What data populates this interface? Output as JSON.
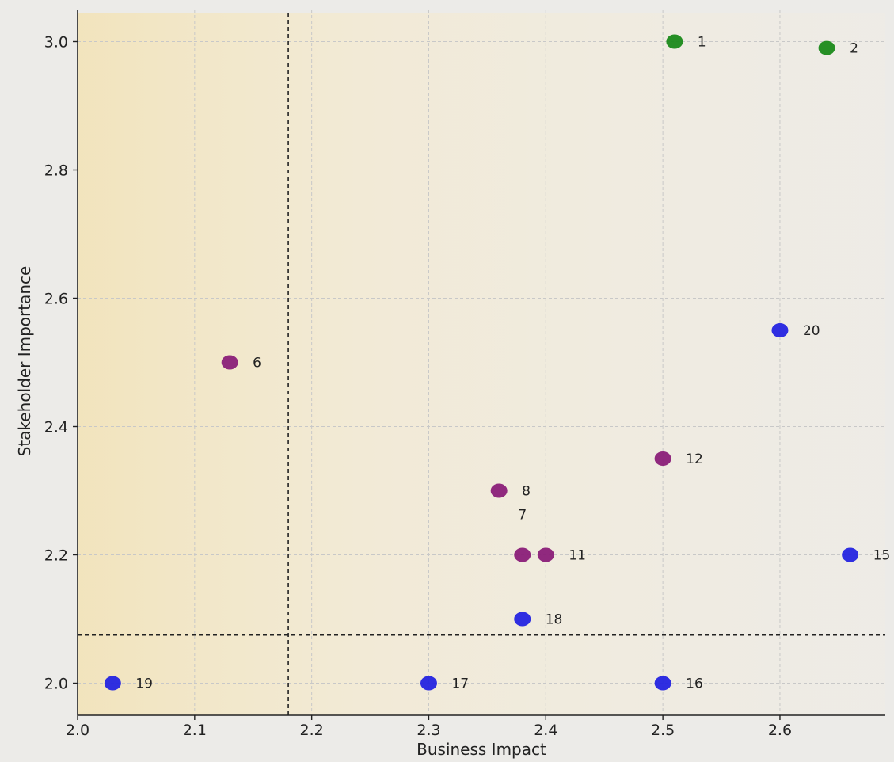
{
  "chart_data": {
    "type": "scatter",
    "title": "",
    "xlabel": "Business Impact",
    "ylabel": "Stakeholder Importance",
    "xlim": [
      2.0,
      2.69
    ],
    "ylim": [
      1.95,
      3.05
    ],
    "x_ticks": [
      "2.0",
      "2.1",
      "2.2",
      "2.3",
      "2.4",
      "2.5",
      "2.6"
    ],
    "y_ticks": [
      "2.0",
      "2.2",
      "2.4",
      "2.6",
      "2.8",
      "3.0"
    ],
    "grid": true,
    "reference_lines": {
      "vertical_x": 2.18,
      "horizontal_y": 2.075,
      "style": "dashed"
    },
    "shaded_region": {
      "color": "#f3e7c0",
      "description": "left quadrant tint"
    },
    "colors": {
      "green": "#1a8a1a",
      "purple": "#8a1f78",
      "blue": "#2424e0",
      "background": "#ecebe8",
      "grid": "#c8c8c8"
    },
    "points": [
      {
        "label": "1",
        "x": 2.51,
        "y": 3.0,
        "color": "green"
      },
      {
        "label": "2",
        "x": 2.64,
        "y": 2.99,
        "color": "green"
      },
      {
        "label": "6",
        "x": 2.13,
        "y": 2.5,
        "color": "purple"
      },
      {
        "label": "8",
        "x": 2.36,
        "y": 2.3,
        "color": "purple"
      },
      {
        "label": "7",
        "x": 2.38,
        "y": 2.2,
        "color": "purple"
      },
      {
        "label": "11",
        "x": 2.4,
        "y": 2.2,
        "color": "purple"
      },
      {
        "label": "12",
        "x": 2.5,
        "y": 2.35,
        "color": "purple"
      },
      {
        "label": "15",
        "x": 2.66,
        "y": 2.2,
        "color": "blue"
      },
      {
        "label": "16",
        "x": 2.5,
        "y": 2.0,
        "color": "blue"
      },
      {
        "label": "17",
        "x": 2.3,
        "y": 2.0,
        "color": "blue"
      },
      {
        "label": "18",
        "x": 2.38,
        "y": 2.1,
        "color": "blue"
      },
      {
        "label": "19",
        "x": 2.03,
        "y": 2.0,
        "color": "blue"
      },
      {
        "label": "20",
        "x": 2.6,
        "y": 2.55,
        "color": "blue"
      }
    ]
  }
}
